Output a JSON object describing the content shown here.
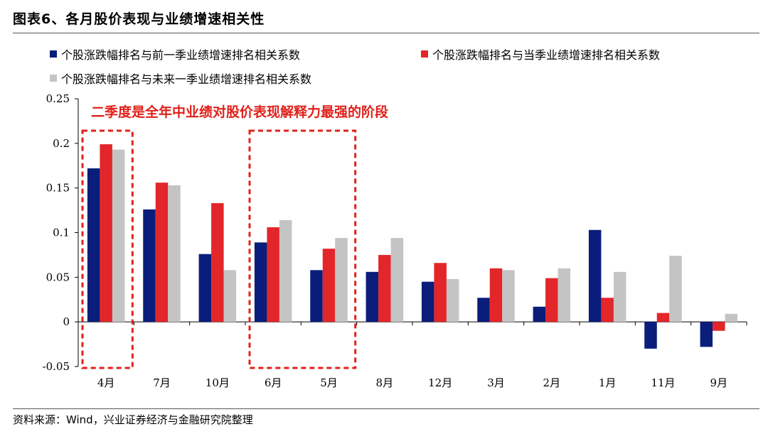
{
  "header": {
    "title": "图表6、各月股价表现与业绩增速相关性"
  },
  "annotation": {
    "text": "二季度是全年中业绩对股价表现解释力最强的阶段",
    "color": "#e0211b"
  },
  "source": {
    "text": "资料来源：Wind，兴业证券经济与金融研究院整理"
  },
  "colors": {
    "series1": "#0a1d7a",
    "series2": "#e3262a",
    "series3": "#c4c4c4",
    "highlight": "#e0211b"
  },
  "chart_data": {
    "type": "bar",
    "categories": [
      "4月",
      "7月",
      "10月",
      "6月",
      "5月",
      "8月",
      "12月",
      "3月",
      "2月",
      "1月",
      "11月",
      "9月"
    ],
    "series": [
      {
        "name": "个股涨跌幅排名与前一季业绩增速排名相关系数",
        "values": [
          0.172,
          0.126,
          0.076,
          0.089,
          0.058,
          0.056,
          0.045,
          0.027,
          0.017,
          0.103,
          -0.03,
          -0.028
        ]
      },
      {
        "name": "个股涨跌幅排名与当季业绩增速排名相关系数",
        "values": [
          0.199,
          0.156,
          0.133,
          0.106,
          0.082,
          0.075,
          0.066,
          0.06,
          0.049,
          0.027,
          0.01,
          -0.01
        ]
      },
      {
        "name": "个股涨跌幅排名与未来一季业绩增速排名相关系数",
        "values": [
          0.193,
          0.153,
          0.058,
          0.114,
          0.094,
          0.094,
          0.048,
          0.058,
          0.06,
          0.056,
          0.074,
          0.009
        ]
      }
    ],
    "ylim": [
      -0.05,
      0.25
    ],
    "yticks": [
      "-0.05",
      "0",
      "0.05",
      "0.1",
      "0.15",
      "0.2",
      "0.25"
    ],
    "grid": false,
    "legend": "top",
    "highlighted_categories": [
      [
        "4月"
      ],
      [
        "6月",
        "5月"
      ]
    ]
  }
}
